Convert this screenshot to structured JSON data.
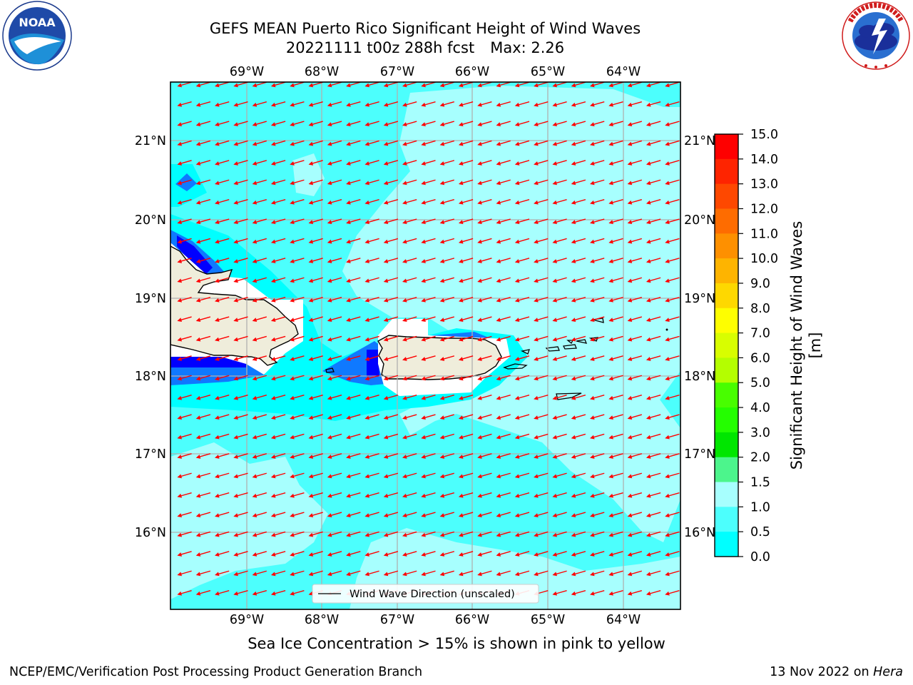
{
  "header": {
    "title_line1": "GEFS MEAN Puerto Rico Significant Height of Wind Waves",
    "title_line2_date": "20221111 t00z 288h fcst",
    "title_line2_max": "Max: 2.26"
  },
  "logos": {
    "left": {
      "name": "noaa-logo",
      "text": "NOAA",
      "ring_text": "NATIONAL OCEANIC AND ATMOSPHERIC ADMINISTRATION · U.S. DEPARTMENT OF COMMERCE"
    },
    "right": {
      "name": "nws-logo",
      "ring_text": "NATIONAL WEATHER SERVICE"
    }
  },
  "map": {
    "lon_labels": [
      "69°W",
      "68°W",
      "67°W",
      "66°W",
      "65°W",
      "64°W"
    ],
    "lat_labels": [
      "21°N",
      "20°N",
      "19°N",
      "18°N",
      "17°N",
      "16°N"
    ],
    "legend_label": "Wind Wave Direction (unscaled)",
    "colors": {
      "ocean_light": "#a7fffe",
      "ocean_mid": "#4cfffd",
      "ocean_deep": "#00ffff",
      "blue": "#0f79ff",
      "dark_blue": "#0000ff",
      "land": "#efeddb",
      "arrow": "#ff0000",
      "grid": "#b0b0b0"
    }
  },
  "colorbar": {
    "label": "Significant Height of Wind Waves [m]",
    "ticks": [
      "15.0",
      "14.0",
      "13.0",
      "12.0",
      "11.0",
      "10.0",
      "9.0",
      "8.0",
      "7.0",
      "6.0",
      "5.0",
      "4.0",
      "3.0",
      "2.0",
      "1.5",
      "1.0",
      "0.5",
      "0.0"
    ],
    "colors": [
      "#fe0000",
      "#fe2400",
      "#fe4800",
      "#fe6c00",
      "#fe9000",
      "#feb400",
      "#fed800",
      "#fefe00",
      "#d8fe00",
      "#b4fe00",
      "#48fe00",
      "#24fe00",
      "#00e600",
      "#4cf58c",
      "#a7fffe",
      "#4cfffd",
      "#00ffff",
      "#0f79ff",
      "#0000ff"
    ]
  },
  "caption": "Sea Ice Concentration > 15% is shown in pink to yellow",
  "footer": {
    "left": "NCEP/EMC/Verification Post Processing Product Generation Branch",
    "right_date": "13 Nov 2022 on",
    "right_host": "Hera"
  }
}
